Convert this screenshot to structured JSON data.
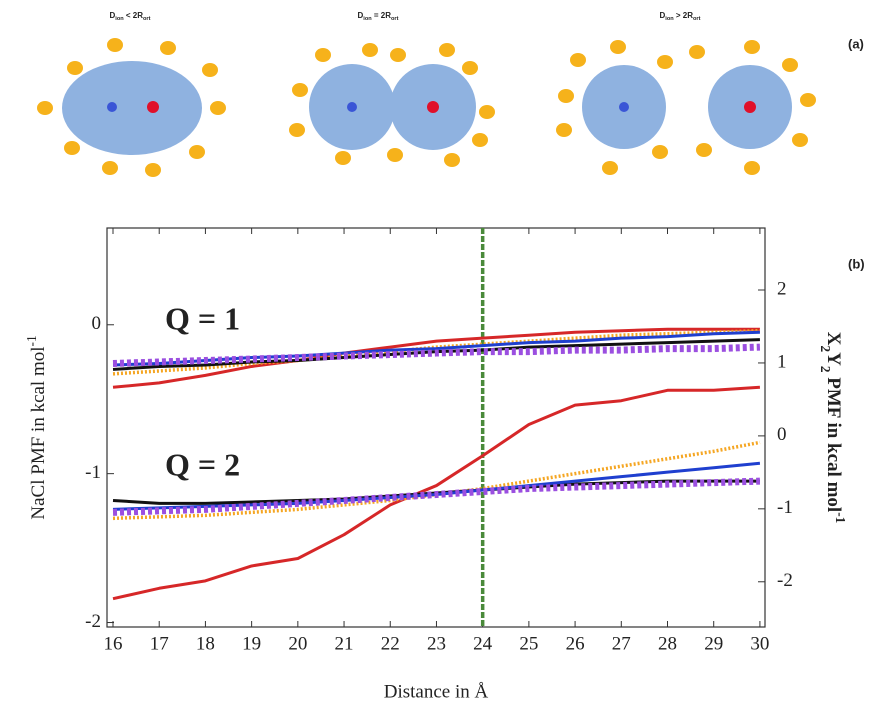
{
  "panel_a": {
    "label": "(a)",
    "schemes": [
      [
        {
          "t": "D"
        },
        {
          "t": "ion",
          "sub": true
        },
        {
          "t": " < 2R"
        },
        {
          "t": "ort",
          "sub": true
        }
      ],
      [
        {
          "t": "D"
        },
        {
          "t": "ion",
          "sub": true
        },
        {
          "t": " = 2R"
        },
        {
          "t": "ort",
          "sub": true
        }
      ],
      [
        {
          "t": "D"
        },
        {
          "t": "ion",
          "sub": true
        },
        {
          "t": " > 2R"
        },
        {
          "t": "ort",
          "sub": true
        }
      ]
    ]
  },
  "chart_data": {
    "type": "line",
    "panel_label": "(b)",
    "x_label": "Distance in Å",
    "y_label": [
      {
        "t": "NaCl PMF in kcal mol"
      },
      {
        "t": "-1",
        "sup": true
      }
    ],
    "y2_label": [
      {
        "t": "X"
      },
      {
        "t": "2",
        "sub": true
      },
      {
        "t": "Y"
      },
      {
        "t": "2",
        "sub": true
      },
      {
        "t": " PMF in kcal mol"
      },
      {
        "t": "-1",
        "sup": true
      }
    ],
    "annotations": [
      "Q = 1",
      "Q = 2"
    ],
    "vline": 24,
    "vline_color": "#4a8a3a",
    "x": [
      16,
      17,
      18,
      19,
      20,
      21,
      22,
      23,
      24,
      25,
      26,
      27,
      28,
      29,
      30
    ],
    "xlim": [
      15.87,
      30.11
    ],
    "xticks": [
      16,
      17,
      18,
      19,
      20,
      21,
      22,
      23,
      24,
      25,
      26,
      27,
      28,
      29,
      30
    ],
    "ylim": [
      -2.03,
      0.65
    ],
    "yticks": [
      -2,
      -1,
      0
    ],
    "y2lim": [
      -2.62,
      2.85
    ],
    "y2ticks": [
      -2,
      -1,
      0,
      1,
      2
    ],
    "series": [
      {
        "color": "#d62728",
        "style": "solid",
        "values": [
          -0.42,
          -0.39,
          -0.34,
          -0.28,
          -0.24,
          -0.19,
          -0.15,
          -0.11,
          -0.09,
          -0.07,
          -0.05,
          -0.04,
          -0.03,
          -0.03,
          -0.03
        ]
      },
      {
        "color": "#f5a623",
        "style": "dotted",
        "values": [
          -0.33,
          -0.31,
          -0.29,
          -0.26,
          -0.24,
          -0.21,
          -0.18,
          -0.15,
          -0.13,
          -0.11,
          -0.09,
          -0.07,
          -0.06,
          -0.05,
          -0.04
        ]
      },
      {
        "color": "#111111",
        "style": "solid",
        "values": [
          -0.3,
          -0.28,
          -0.27,
          -0.25,
          -0.24,
          -0.22,
          -0.2,
          -0.18,
          -0.17,
          -0.15,
          -0.14,
          -0.13,
          -0.12,
          -0.11,
          -0.1
        ]
      },
      {
        "color": "#1f3fcf",
        "style": "solid",
        "values": [
          -0.27,
          -0.26,
          -0.24,
          -0.22,
          -0.21,
          -0.19,
          -0.17,
          -0.16,
          -0.14,
          -0.12,
          -0.11,
          -0.09,
          -0.08,
          -0.06,
          -0.05
        ]
      },
      {
        "color": "#9b4fe0",
        "style": "dashed",
        "values": [
          -0.26,
          -0.25,
          -0.24,
          -0.23,
          -0.22,
          -0.21,
          -0.2,
          -0.19,
          -0.18,
          -0.18,
          -0.17,
          -0.17,
          -0.16,
          -0.16,
          -0.15
        ]
      },
      {
        "color": "#d62728",
        "style": "solid",
        "values": [
          -1.84,
          -1.77,
          -1.72,
          -1.62,
          -1.57,
          -1.41,
          -1.21,
          -1.08,
          -0.88,
          -0.67,
          -0.54,
          -0.51,
          -0.44,
          -0.44,
          -0.42
        ]
      },
      {
        "color": "#f5a623",
        "style": "dotted",
        "values": [
          -1.3,
          -1.29,
          -1.28,
          -1.26,
          -1.24,
          -1.21,
          -1.18,
          -1.14,
          -1.1,
          -1.05,
          -1.0,
          -0.95,
          -0.9,
          -0.85,
          -0.79
        ]
      },
      {
        "color": "#111111",
        "style": "solid",
        "values": [
          -1.18,
          -1.2,
          -1.2,
          -1.19,
          -1.18,
          -1.17,
          -1.15,
          -1.13,
          -1.11,
          -1.09,
          -1.07,
          -1.06,
          -1.05,
          -1.05,
          -1.05
        ]
      },
      {
        "color": "#1f3fcf",
        "style": "solid",
        "values": [
          -1.24,
          -1.23,
          -1.22,
          -1.21,
          -1.2,
          -1.18,
          -1.16,
          -1.14,
          -1.11,
          -1.08,
          -1.05,
          -1.02,
          -0.99,
          -0.96,
          -0.93
        ]
      },
      {
        "color": "#9b4fe0",
        "style": "dashed",
        "values": [
          -1.26,
          -1.25,
          -1.24,
          -1.22,
          -1.2,
          -1.18,
          -1.16,
          -1.14,
          -1.12,
          -1.1,
          -1.09,
          -1.08,
          -1.07,
          -1.06,
          -1.05
        ]
      }
    ]
  }
}
